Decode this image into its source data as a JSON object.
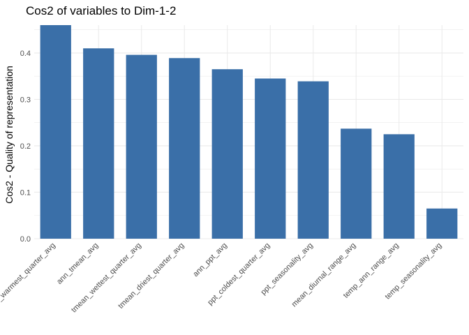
{
  "chart_data": {
    "type": "bar",
    "title": "Cos2 of variables to Dim-1-2",
    "xlabel": "",
    "ylabel": "Cos2 - Quality of representation",
    "categories": [
      "ppt_warmest_quarter_avg",
      "ann_tmean_avg",
      "tmean_wettest_quarter_avg",
      "tmean_driest_quarter_avg",
      "ann_ppt_avg",
      "ppt_coldest_quarter_avg",
      "ppt_seasonality_avg",
      "mean_diurnal_range_avg",
      "temp_ann_range_avg",
      "temp_seasonality_avg"
    ],
    "values": [
      0.46,
      0.41,
      0.396,
      0.389,
      0.365,
      0.345,
      0.339,
      0.237,
      0.225,
      0.065
    ],
    "ylim": [
      0,
      0.46
    ],
    "yticks": [
      "0.0",
      "0.1",
      "0.2",
      "0.3",
      "0.4"
    ],
    "grid": true,
    "bar_color": "#3A6FA8",
    "grid_color": "#EBEBEB"
  }
}
